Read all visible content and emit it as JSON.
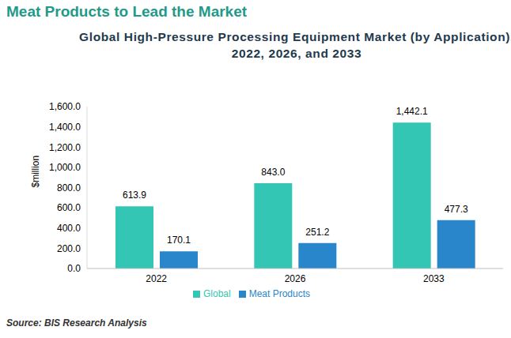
{
  "chart_data": {
    "type": "bar",
    "header": "Meat Products to Lead the Market",
    "title": "Global High-Pressure Processing Equipment Market (by Application), 2022, 2026, and 2033",
    "y_label": "$million",
    "source": "Source: BIS Research Analysis",
    "categories": [
      "2022",
      "2026",
      "2033"
    ],
    "series": [
      {
        "name": "Global",
        "color": "#33c6b5",
        "values": [
          613.9,
          843.0,
          1442.1
        ],
        "value_labels": [
          "613.9",
          "843.0",
          "1,442.1"
        ]
      },
      {
        "name": "Meat Products",
        "color": "#2a86ca",
        "values": [
          170.1,
          251.2,
          477.3
        ],
        "value_labels": [
          "170.1",
          "251.2",
          "477.3"
        ]
      }
    ],
    "ylim": [
      0,
      1600
    ],
    "yticks": [
      {
        "value": 0,
        "label": "0.0"
      },
      {
        "value": 200,
        "label": "200.0"
      },
      {
        "value": 400,
        "label": "400.0"
      },
      {
        "value": 600,
        "label": "600.0"
      },
      {
        "value": 800,
        "label": "800.0"
      },
      {
        "value": 1000,
        "label": "1,000.0"
      },
      {
        "value": 1200,
        "label": "1,200.0"
      },
      {
        "value": 1400,
        "label": "1,400.0"
      },
      {
        "value": 1600,
        "label": "1,600.0"
      }
    ],
    "grid": false,
    "legend": "bottom",
    "data_labels": true
  }
}
